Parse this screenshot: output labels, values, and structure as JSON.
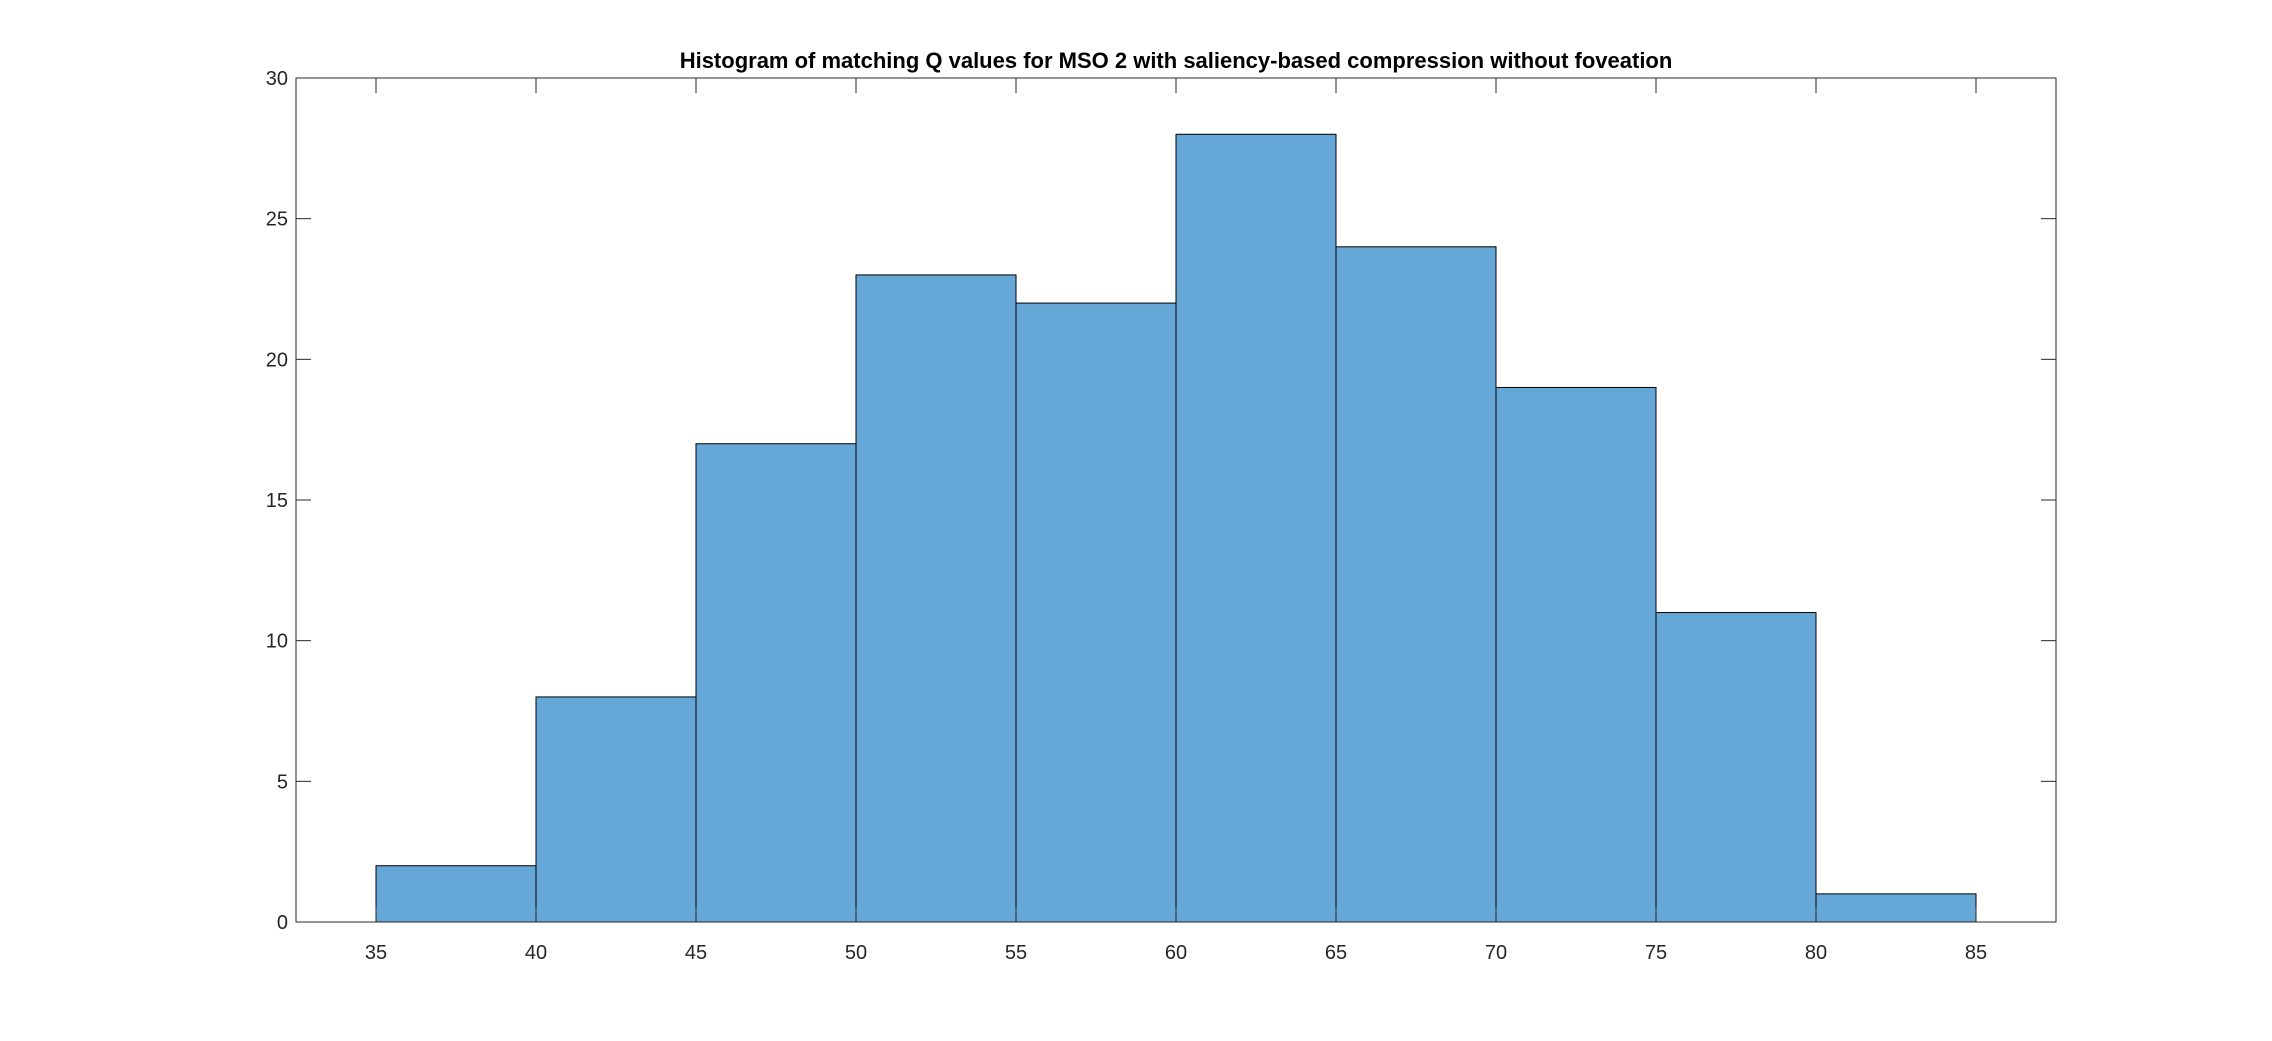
{
  "chart_data": {
    "type": "bar",
    "title": "Histogram of matching Q values for MSO 2 with saliency-based compression without foveation",
    "xlabel": "",
    "ylabel": "",
    "bin_edges": [
      35,
      40,
      45,
      50,
      55,
      60,
      65,
      70,
      75,
      80,
      85
    ],
    "counts": [
      2,
      8,
      17,
      23,
      22,
      28,
      24,
      19,
      11,
      1
    ],
    "xlim": [
      32.5,
      87.5
    ],
    "ylim": [
      0,
      30
    ],
    "xticks": [
      35,
      40,
      45,
      50,
      55,
      60,
      65,
      70,
      75,
      80,
      85
    ],
    "yticks": [
      0,
      5,
      10,
      15,
      20,
      25,
      30
    ],
    "bar_color": "#65a8d7",
    "edge_color": "#000000",
    "grid": false,
    "legend": null
  }
}
